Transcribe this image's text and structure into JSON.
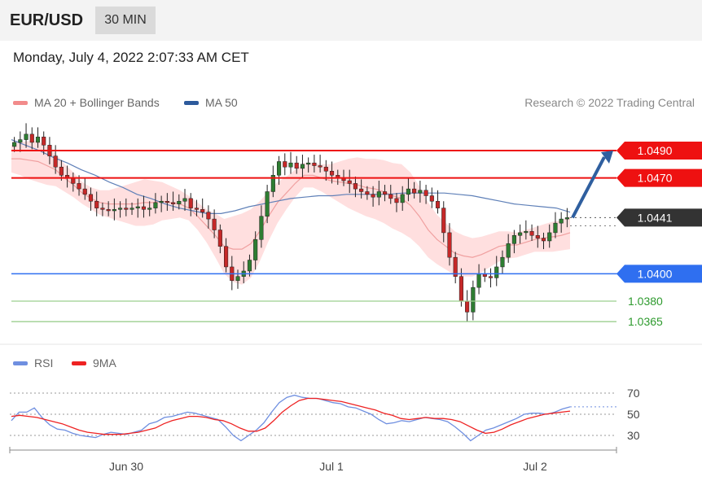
{
  "header": {
    "symbol": "EUR/USD",
    "timeframe": "30 MIN"
  },
  "datetime": "Monday, July 4, 2022 2:07:33 AM CET",
  "legend_main": [
    {
      "label": "MA 20 + Bollinger Bands",
      "color": "#f28b8b"
    },
    {
      "label": "MA 50",
      "color": "#2d5a9c"
    }
  ],
  "legend_rsi": [
    {
      "label": "RSI",
      "color": "#6f8fe0"
    },
    {
      "label": "9MA",
      "color": "#ee2222"
    }
  ],
  "copyright": "Research © 2022 Trading Central",
  "colors": {
    "resistance": "#ee1111",
    "support": "#2f6ff0",
    "support_light": "#9ccf8f",
    "last_price_box": "#333333",
    "arrow": "#2f5f9f",
    "candle_up": "#2e7d32",
    "candle_down": "#c62828",
    "bands_fill": "#ffd9d9",
    "ma20": "#f0a0a0",
    "ma50": "#5f80b8",
    "rsi": "#6f8fe0",
    "rsi_ma": "#ee2222"
  },
  "chart_data": [
    {
      "type": "candlestick",
      "ylim": [
        1.0355,
        1.0515
      ],
      "levels": [
        {
          "value": 1.049,
          "label": "1.0490",
          "kind": "resistance"
        },
        {
          "value": 1.047,
          "label": "1.0470",
          "kind": "resistance"
        },
        {
          "value": 1.0441,
          "label": "1.0441",
          "kind": "last_price"
        },
        {
          "value": 1.04,
          "label": "1.0400",
          "kind": "support"
        },
        {
          "value": 1.038,
          "label": "1.0380",
          "kind": "support_light"
        },
        {
          "value": 1.0365,
          "label": "1.0365",
          "kind": "support_light"
        }
      ],
      "projection": {
        "from": 1.0441,
        "to": 1.049
      },
      "close_series": [
        1.0496,
        1.0498,
        1.0502,
        1.0496,
        1.05,
        1.0494,
        1.0486,
        1.0478,
        1.0472,
        1.047,
        1.0466,
        1.0462,
        1.0458,
        1.0453,
        1.0448,
        1.0447,
        1.0446,
        1.0447,
        1.0448,
        1.0447,
        1.0448,
        1.0449,
        1.0447,
        1.0448,
        1.0452,
        1.0453,
        1.0452,
        1.0451,
        1.0453,
        1.0455,
        1.0448,
        1.0447,
        1.0445,
        1.044,
        1.0432,
        1.042,
        1.0405,
        1.0395,
        1.0398,
        1.0402,
        1.041,
        1.0425,
        1.0442,
        1.046,
        1.0472,
        1.0482,
        1.0478,
        1.0481,
        1.0477,
        1.048,
        1.0481,
        1.0479,
        1.0478,
        1.0475,
        1.0472,
        1.047,
        1.0468,
        1.0466,
        1.0462,
        1.046,
        1.0458,
        1.0456,
        1.046,
        1.0458,
        1.0455,
        1.0452,
        1.0458,
        1.0462,
        1.0459,
        1.0461,
        1.0457,
        1.0453,
        1.0448,
        1.043,
        1.0412,
        1.0398,
        1.038,
        1.0372,
        1.039,
        1.04,
        1.0398,
        1.0397,
        1.0405,
        1.0412,
        1.0422,
        1.0428,
        1.043,
        1.0431,
        1.0428,
        1.0426,
        1.0424,
        1.043,
        1.0437,
        1.044,
        1.0441
      ],
      "ma20_series": [
        1.0484,
        1.0484,
        1.0483,
        1.0482,
        1.0479,
        1.0476,
        1.047,
        1.0465,
        1.0459,
        1.0455,
        1.0452,
        1.0451,
        1.0451,
        1.0451,
        1.0451,
        1.0452,
        1.0452,
        1.0453,
        1.0452,
        1.0451,
        1.0448,
        1.0442,
        1.0435,
        1.0428,
        1.042,
        1.0418,
        1.0418,
        1.0422,
        1.0431,
        1.0442,
        1.0452,
        1.0459,
        1.0466,
        1.0472,
        1.0472,
        1.047,
        1.0468,
        1.0467,
        1.0466,
        1.0465,
        1.0463,
        1.0462,
        1.046,
        1.0457,
        1.0455,
        1.045,
        1.0442,
        1.0432,
        1.0425,
        1.042,
        1.0415,
        1.0413,
        1.0412,
        1.0414,
        1.0417,
        1.042,
        1.0421,
        1.0421,
        1.0423,
        1.0425,
        1.0426,
        1.0427,
        1.0428,
        1.043
      ],
      "ma50_series": [
        1.0498,
        1.0494,
        1.049,
        1.0485,
        1.0481,
        1.0476,
        1.0472,
        1.0467,
        1.0463,
        1.0458,
        1.0455,
        1.0451,
        1.0448,
        1.0446,
        1.0444,
        1.0444,
        1.0446,
        1.0449,
        1.0451,
        1.0453,
        1.0455,
        1.0456,
        1.0457,
        1.0457,
        1.0458,
        1.0458,
        1.0458,
        1.0458,
        1.0459,
        1.0459,
        1.0459,
        1.0459,
        1.0458,
        1.0457,
        1.0455,
        1.0453,
        1.0451,
        1.045,
        1.0449,
        1.0448,
        1.0445
      ]
    },
    {
      "type": "line",
      "ylim": [
        20,
        80
      ],
      "yticks": [
        70,
        50,
        30
      ],
      "x_ticks": [
        "Jun 30",
        "Jul 1",
        "Jul 2"
      ],
      "series": [
        {
          "name": "RSI",
          "values": [
            44,
            52,
            52,
            56,
            47,
            40,
            36,
            35,
            32,
            30,
            29,
            28,
            31,
            33,
            32,
            31,
            33,
            35,
            41,
            43,
            47,
            48,
            50,
            52,
            51,
            49,
            47,
            45,
            38,
            30,
            25,
            30,
            35,
            42,
            52,
            61,
            66,
            68,
            66,
            65,
            65,
            63,
            61,
            60,
            57,
            56,
            53,
            50,
            45,
            41,
            42,
            44,
            43,
            45,
            47,
            46,
            45,
            43,
            38,
            32,
            25,
            30,
            35,
            37,
            40,
            43,
            46,
            50,
            51,
            51,
            50,
            52,
            55,
            57
          ]
        },
        {
          "name": "9MA",
          "values": [
            48,
            49,
            48,
            47,
            45,
            43,
            41,
            38,
            35,
            33,
            32,
            31,
            31,
            31,
            32,
            33,
            35,
            37,
            41,
            44,
            46,
            48,
            48,
            47,
            45,
            44,
            41,
            37,
            34,
            34,
            37,
            44,
            52,
            58,
            63,
            65,
            65,
            64,
            63,
            62,
            60,
            58,
            56,
            54,
            51,
            49,
            46,
            45,
            46,
            47,
            46,
            46,
            45,
            43,
            39,
            35,
            32,
            33,
            36,
            40,
            43,
            46,
            48,
            50,
            51,
            52,
            53
          ]
        }
      ]
    }
  ]
}
